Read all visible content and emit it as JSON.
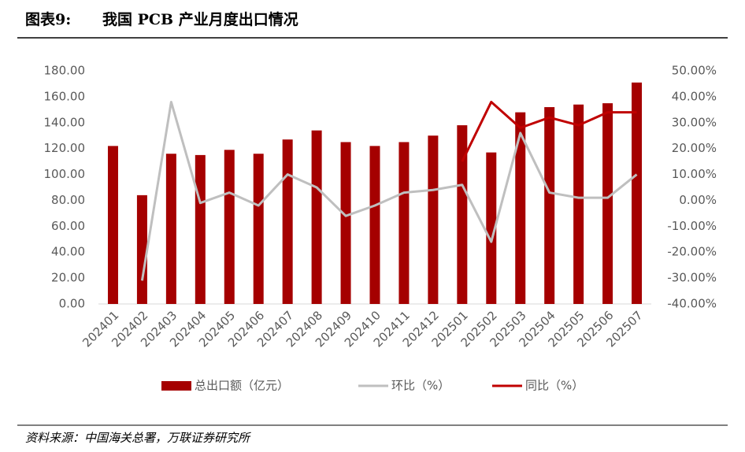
{
  "header": {
    "label": "图表9:",
    "title": "我国 PCB 产业月度出口情况"
  },
  "source": "资料来源：中国海关总署，万联证券研究所",
  "chart_data": {
    "type": "combo",
    "categories": [
      "202401",
      "202402",
      "202403",
      "202404",
      "202405",
      "202406",
      "202407",
      "202408",
      "202409",
      "202410",
      "202411",
      "202412",
      "202501",
      "202502",
      "202503",
      "202504",
      "202505",
      "202506",
      "202507"
    ],
    "series": [
      {
        "name": "总出口额（亿元）",
        "type": "bar",
        "color": "#a50000",
        "values": [
          122,
          84,
          116,
          115,
          119,
          116,
          127,
          134,
          125,
          122,
          125,
          130,
          138,
          117,
          148,
          152,
          154,
          155,
          171
        ]
      },
      {
        "name": "环比（%）",
        "type": "line",
        "axis": "y2",
        "color": "#bfbfbf",
        "values": [
          null,
          -31,
          38,
          -1,
          3,
          -2,
          10,
          5,
          -6,
          -2,
          3,
          4,
          6,
          -16,
          26,
          3,
          1,
          1,
          10
        ]
      },
      {
        "name": "同比（%）",
        "type": "line",
        "axis": "y2",
        "color": "#c00000",
        "values": [
          null,
          null,
          null,
          null,
          null,
          null,
          null,
          null,
          null,
          null,
          null,
          null,
          15,
          38,
          28,
          32,
          29,
          34,
          34
        ]
      }
    ],
    "ylim": [
      0,
      180
    ],
    "yticks": [
      {
        "value": 0,
        "label": "0.00"
      },
      {
        "value": 20,
        "label": "20.00"
      },
      {
        "value": 40,
        "label": "40.00"
      },
      {
        "value": 60,
        "label": "60.00"
      },
      {
        "value": 80,
        "label": "80.00"
      },
      {
        "value": 100,
        "label": "100.00"
      },
      {
        "value": 120,
        "label": "120.00"
      },
      {
        "value": 140,
        "label": "140.00"
      },
      {
        "value": 160,
        "label": "160.00"
      },
      {
        "value": 180,
        "label": "180.00"
      }
    ],
    "y2lim": [
      -40,
      50
    ],
    "y2ticks": [
      {
        "value": -40,
        "label": "-40.00%"
      },
      {
        "value": -30,
        "label": "-30.00%"
      },
      {
        "value": -20,
        "label": "-20.00%"
      },
      {
        "value": -10,
        "label": "-10.00%"
      },
      {
        "value": 0,
        "label": "0.00%"
      },
      {
        "value": 10,
        "label": "10.00%"
      },
      {
        "value": 20,
        "label": "20.00%"
      },
      {
        "value": 30,
        "label": "30.00%"
      },
      {
        "value": 40,
        "label": "40.00%"
      },
      {
        "value": 50,
        "label": "50.00%"
      }
    ],
    "legend": "bottom"
  }
}
